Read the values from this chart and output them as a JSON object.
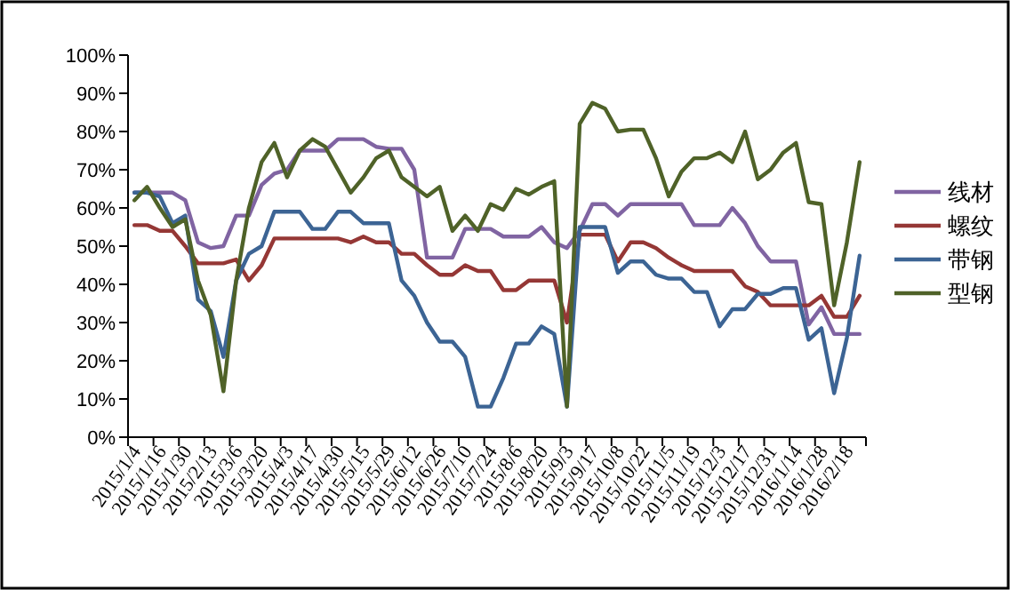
{
  "chart_data": {
    "type": "line",
    "legend": "right",
    "grid": false,
    "ylim": [
      0,
      100
    ],
    "yticks": [
      {
        "value": 0,
        "label": "0%"
      },
      {
        "value": 10,
        "label": "10%"
      },
      {
        "value": 20,
        "label": "20%"
      },
      {
        "value": 30,
        "label": "30%"
      },
      {
        "value": 40,
        "label": "40%"
      },
      {
        "value": 50,
        "label": "50%"
      },
      {
        "value": 60,
        "label": "60%"
      },
      {
        "value": 70,
        "label": "70%"
      },
      {
        "value": 80,
        "label": "80%"
      },
      {
        "value": 90,
        "label": "90%"
      },
      {
        "value": 100,
        "label": "100%"
      }
    ],
    "categories": [
      "2015/1/4",
      null,
      "2015/1/16",
      null,
      "2015/1/30",
      null,
      "2015/2/13",
      null,
      "2015/3/6",
      null,
      "2015/3/20",
      null,
      "2015/4/3",
      null,
      "2015/4/17",
      null,
      "2015/4/30",
      null,
      "2015/5/15",
      null,
      "2015/5/29",
      null,
      "2015/6/12",
      null,
      "2015/6/26",
      null,
      "2015/7/10",
      null,
      "2015/7/24",
      null,
      "2015/8/6",
      null,
      "2015/8/20",
      null,
      "2015/9/3",
      null,
      "2015/9/17",
      null,
      "2015/10/8",
      null,
      "2015/10/22",
      null,
      "2015/11/5",
      null,
      "2015/11/19",
      null,
      "2015/12/3",
      null,
      "2015/12/17",
      null,
      "2015/12/31",
      null,
      "2016/1/14",
      null,
      "2016/1/28",
      null,
      "2016/2/18",
      null
    ],
    "series": [
      {
        "name": "线材",
        "color": "#8064a2",
        "values": [
          64,
          64,
          64,
          64,
          62,
          51,
          49.5,
          50,
          58,
          58,
          66,
          69,
          70,
          75,
          75,
          75,
          78,
          78,
          78,
          76,
          75.5,
          75.5,
          70,
          47,
          47,
          47,
          54.5,
          54.5,
          54.5,
          52.5,
          52.5,
          52.5,
          55,
          51,
          49.5,
          54,
          61,
          61,
          58,
          61,
          61,
          61,
          61,
          61,
          55.5,
          55.5,
          55.5,
          60,
          56,
          50,
          46,
          46,
          46,
          29.5,
          34,
          27,
          27,
          27
        ]
      },
      {
        "name": "螺纹",
        "color": "#953735",
        "values": [
          55.5,
          55.5,
          54,
          54,
          50,
          45.5,
          45.5,
          45.5,
          46.5,
          41,
          45,
          52,
          52,
          52,
          52,
          52,
          52,
          51,
          52.5,
          51,
          51,
          48,
          48,
          45,
          42.5,
          42.5,
          45,
          43.5,
          43.5,
          38.5,
          38.5,
          41,
          41,
          41,
          30,
          53,
          53,
          53,
          46,
          51,
          51,
          49.5,
          47,
          45,
          43.5,
          43.5,
          43.5,
          43.5,
          39.5,
          38,
          34.5,
          34.5,
          34.5,
          34.5,
          37,
          31.5,
          31.5,
          37
        ]
      },
      {
        "name": "带钢",
        "color": "#3c6494",
        "values": [
          64,
          64,
          63,
          56,
          58,
          36,
          33,
          21,
          41,
          48,
          50,
          59,
          59,
          59,
          54.5,
          54.5,
          59,
          59,
          56,
          56,
          56,
          41,
          37,
          30,
          25,
          25,
          21,
          8,
          8,
          15.5,
          24.5,
          24.5,
          29,
          27,
          8,
          55,
          55,
          55,
          43,
          46,
          46,
          42.5,
          41.5,
          41.5,
          38,
          38,
          29,
          33.5,
          33.5,
          37.5,
          37.5,
          39,
          39,
          25.5,
          28.5,
          11.5,
          26,
          47.5
        ]
      },
      {
        "name": "型钢",
        "color": "#4f6228",
        "values": [
          62,
          65.5,
          60,
          55,
          57,
          41,
          32,
          12,
          41,
          60,
          72,
          77,
          68,
          75,
          78,
          76,
          70,
          64,
          68,
          73,
          75,
          68,
          65.5,
          63,
          65.5,
          54,
          58,
          54,
          61,
          59.5,
          65,
          63.5,
          65.5,
          67,
          8,
          82,
          87.5,
          86,
          80,
          80.5,
          80.5,
          73,
          63,
          69.5,
          73,
          73,
          74.5,
          72,
          80,
          67.5,
          70,
          74.5,
          77,
          61.5,
          61,
          34.5,
          51,
          72
        ]
      }
    ]
  }
}
